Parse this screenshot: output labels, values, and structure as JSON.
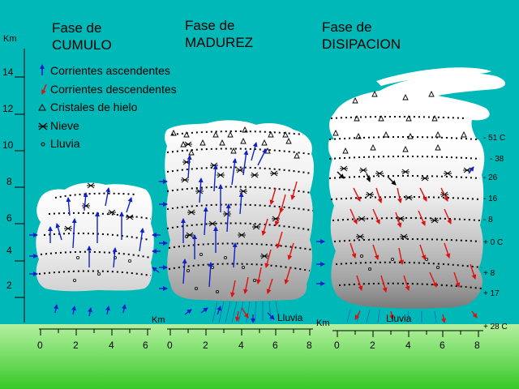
{
  "phases": [
    {
      "line1": "Fase de",
      "line2": "CUMULO"
    },
    {
      "line1": "Fase de",
      "line2": "MADUREZ"
    },
    {
      "line1": "Fase de",
      "line2": "DISIPACION"
    }
  ],
  "left_axis": {
    "unit": "Km",
    "ticks": [
      "14",
      "12",
      "10",
      "8",
      "6",
      "4",
      "2"
    ]
  },
  "legend": [
    {
      "icon": "up-arrow-icon",
      "color": "#1020c8",
      "label": "Corrientes ascendentes"
    },
    {
      "icon": "down-arrow-icon",
      "color": "#e01010",
      "label": "Corrientes descendentes"
    },
    {
      "icon": "triangle-icon",
      "color": "#000000",
      "label": "Cristales de hielo"
    },
    {
      "icon": "snowflake-icon",
      "color": "#000000",
      "label": "Nieve"
    },
    {
      "icon": "circle-icon",
      "color": "#000000",
      "label": "Lluvia"
    }
  ],
  "temperatures": [
    "- 51 C",
    "- 38",
    "- 26",
    "- 16",
    "- 8",
    "+ 0 C",
    "+ 8",
    "+ 17",
    "+ 28 C"
  ],
  "bottom_axes": [
    {
      "unit": "Km",
      "ticks": [
        "0",
        "2",
        "4",
        "6"
      ]
    },
    {
      "unit": "Km",
      "ticks": [
        "0",
        "2",
        "4",
        "6",
        "8"
      ]
    },
    {
      "unit": "Km",
      "ticks": [
        "0",
        "2",
        "4",
        "6",
        "8"
      ]
    }
  ],
  "rain_labels": [
    "Lluvia",
    "Lluvia"
  ],
  "colors": {
    "sky": "#00b8b8",
    "ground_top": "#b4f0a0",
    "ground_bottom": "#38c828",
    "updraft": "#1020c8",
    "downdraft": "#e01010"
  }
}
